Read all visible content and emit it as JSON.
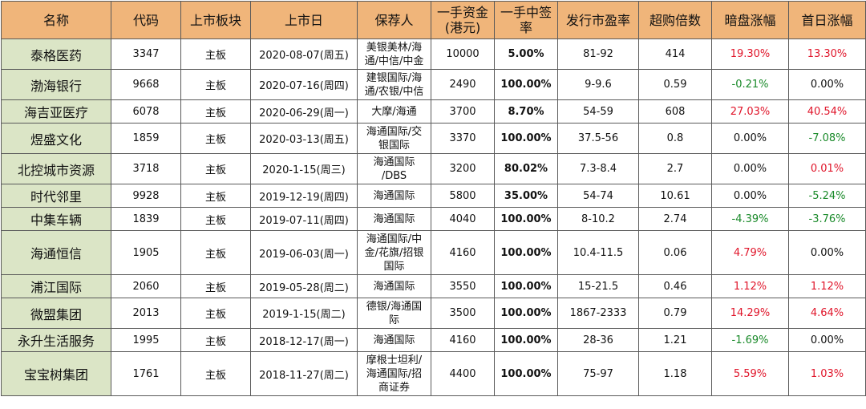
{
  "headers": [
    "名称",
    "代码",
    "上市板块",
    "上市日",
    "保荐人",
    "一手资金\n(港元)",
    "一手中签\n率",
    "发行市盈率",
    "超购倍数",
    "暗盘涨幅",
    "首日涨幅"
  ],
  "rows": [
    {
      "name": "泰格医药",
      "code": "3347",
      "board": "主板",
      "date": "2020-08-07(周五)",
      "sponsor": "美银美林/海\n通/中信/中金",
      "lot": "10000",
      "rate": "5.00%",
      "pe": "81-92",
      "oversub": "414",
      "grey": "19.30%",
      "first": "13.30%"
    },
    {
      "name": "渤海银行",
      "code": "9668",
      "board": "主板",
      "date": "2020-07-16(周四)",
      "sponsor": "建银国际/海\n通/农银/中信",
      "lot": "2490",
      "rate": "100.00%",
      "pe": "9-9.6",
      "oversub": "0.59",
      "grey": "-0.21%",
      "first": "0.00%"
    },
    {
      "name": "海吉亚医疗",
      "code": "6078",
      "board": "主板",
      "date": "2020-06-29(周一)",
      "sponsor": "大摩/海通",
      "lot": "3700",
      "rate": "8.70%",
      "pe": "54-59",
      "oversub": "608",
      "grey": "27.03%",
      "first": "40.54%"
    },
    {
      "name": "煜盛文化",
      "code": "1859",
      "board": "主板",
      "date": "2020-03-13(周五)",
      "sponsor": "海通国际/交\n银国际",
      "lot": "3370",
      "rate": "100.00%",
      "pe": "37.5-56",
      "oversub": "0.8",
      "grey": "0.00%",
      "first": "-7.08%"
    },
    {
      "name": "北控城市资源",
      "code": "3718",
      "board": "主板",
      "date": "2020-1-15(周三)",
      "sponsor": "海通国际\n/DBS",
      "lot": "3200",
      "rate": "80.02%",
      "pe": "7.3-8.4",
      "oversub": "2.7",
      "grey": "0.00%",
      "first": "0.01%"
    },
    {
      "name": "时代邻里",
      "code": "9928",
      "board": "主板",
      "date": "2019-12-19(周四)",
      "sponsor": "海通国际",
      "lot": "5800",
      "rate": "35.00%",
      "pe": "54-74",
      "oversub": "10.61",
      "grey": "0.00%",
      "first": "-5.24%"
    },
    {
      "name": "中集车辆",
      "code": "1839",
      "board": "主板",
      "date": "2019-07-11(周四)",
      "sponsor": "海通国际",
      "lot": "4040",
      "rate": "100.00%",
      "pe": "8-10.2",
      "oversub": "2.74",
      "grey": "-4.39%",
      "first": "-3.76%"
    },
    {
      "name": "海通恒信",
      "code": "1905",
      "board": "主板",
      "date": "2019-06-03(周一)",
      "sponsor": "海通国际/中\n金/花旗/招银\n国际",
      "lot": "4160",
      "rate": "100.00%",
      "pe": "10.4-11.5",
      "oversub": "0.06",
      "grey": "4.79%",
      "first": "0.00%"
    },
    {
      "name": "浦江国际",
      "code": "2060",
      "board": "主板",
      "date": "2019-05-28(周二)",
      "sponsor": "海通国际",
      "lot": "3550",
      "rate": "100.00%",
      "pe": "15-21.5",
      "oversub": "0.46",
      "grey": "1.12%",
      "first": "1.12%"
    },
    {
      "name": "微盟集团",
      "code": "2013",
      "board": "主板",
      "date": "2019-1-15(周二)",
      "sponsor": "德银/海通国\n际",
      "lot": "3500",
      "rate": "100.00%",
      "pe": "1867-2333",
      "oversub": "0.79",
      "grey": "14.29%",
      "first": "4.64%"
    },
    {
      "name": "永升生活服务",
      "code": "1995",
      "board": "主板",
      "date": "2018-12-17(周一)",
      "sponsor": "海通国际",
      "lot": "4160",
      "rate": "100.00%",
      "pe": "28-36",
      "oversub": "1.21",
      "grey": "-1.69%",
      "first": "0.00%"
    },
    {
      "name": "宝宝树集团",
      "code": "1761",
      "board": "主板",
      "date": "2018-11-27(周二)",
      "sponsor": "摩根士坦利/\n海通国际/招\n商证券",
      "lot": "4400",
      "rate": "100.00%",
      "pe": "75-97",
      "oversub": "1.18",
      "grey": "5.59%",
      "first": "1.03%"
    }
  ],
  "colors": {
    "header_bg": "#f0b57a",
    "name_bg": "#dbe5c6",
    "positive": "#e0152a",
    "negative": "#1a8a2a"
  }
}
